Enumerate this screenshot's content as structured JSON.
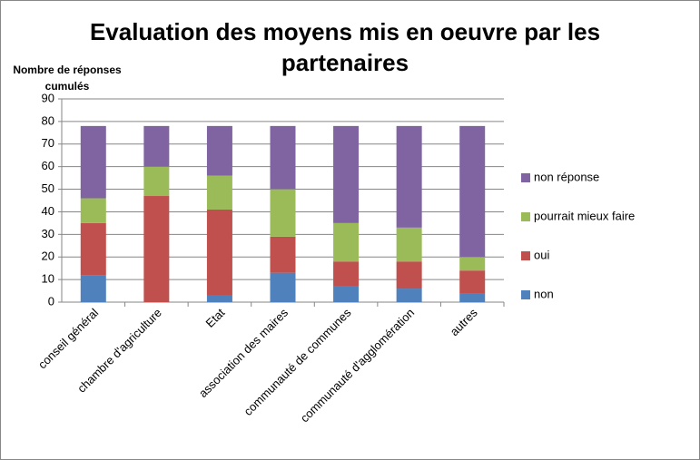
{
  "chart_data": {
    "type": "stacked_bar",
    "title": "Evaluation des moyens mis en oeuvre par les partenaires",
    "y_label": "Nombre de réponses cumulés",
    "categories": [
      "conseil général",
      "chambre d'agriculture",
      "Etat",
      "association des maires",
      "communauté de communes",
      "communauté d'agglomération",
      "autres"
    ],
    "series": [
      {
        "name": "non",
        "color": "#4f81bd",
        "values": [
          12,
          0,
          3,
          13,
          7,
          6,
          4
        ]
      },
      {
        "name": "oui",
        "color": "#c0504d",
        "values": [
          23,
          47,
          38,
          16,
          11,
          12,
          10
        ]
      },
      {
        "name": "pourrait mieux faire",
        "color": "#9bbb59",
        "values": [
          11,
          13,
          15,
          21,
          17,
          15,
          6
        ]
      },
      {
        "name": "non réponse",
        "color": "#8064a2",
        "values": [
          32,
          18,
          22,
          28,
          43,
          45,
          58
        ]
      }
    ],
    "ylim": [
      0,
      90
    ],
    "yticks": [
      0,
      10,
      20,
      30,
      40,
      50,
      60,
      70,
      80,
      90
    ],
    "grid": true,
    "legend": "right"
  }
}
